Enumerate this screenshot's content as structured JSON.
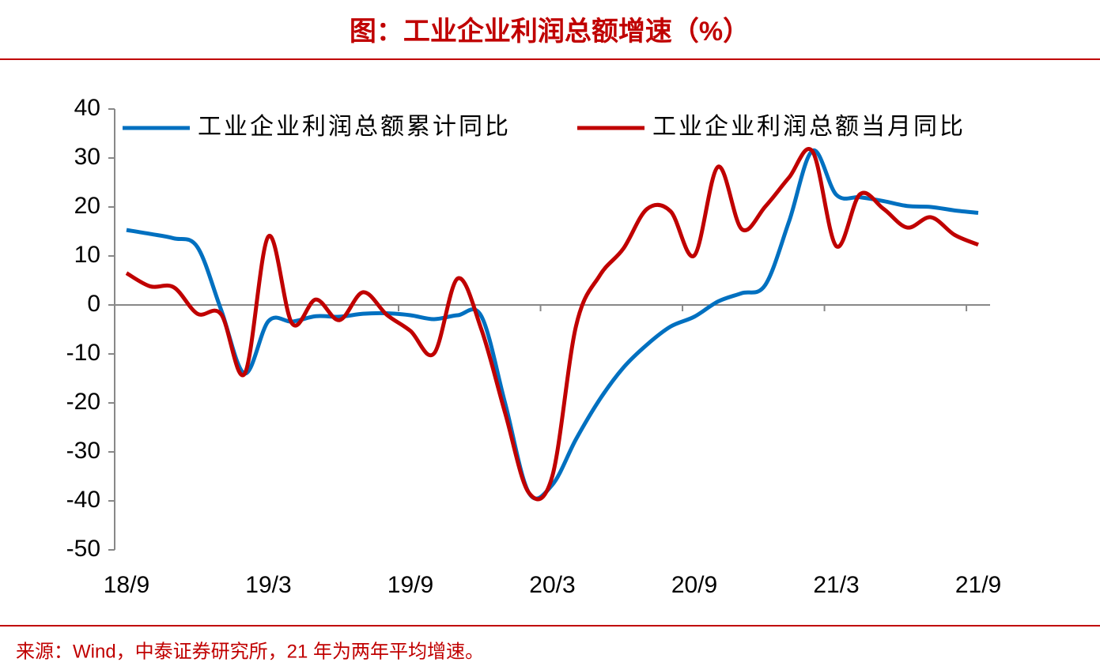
{
  "chart_data": {
    "type": "line",
    "title": "图：工业企业利润总额增速（%）",
    "source": "来源：Wind，中泰证券研究所，21 年为两年平均增速。",
    "categories": [
      "18/9",
      null,
      null,
      null,
      null,
      null,
      "19/3",
      null,
      null,
      null,
      null,
      null,
      "19/9",
      null,
      null,
      null,
      null,
      null,
      "20/3",
      null,
      null,
      null,
      null,
      null,
      "20/9",
      null,
      null,
      null,
      null,
      null,
      "21/3",
      null,
      null,
      null,
      null,
      null,
      "21/9"
    ],
    "series": [
      {
        "name": "工业企业利润总额累计同比",
        "color": "#0070c0",
        "values": [
          15.3,
          14.5,
          13.6,
          11.8,
          -1,
          -14.0,
          -3.3,
          -3.4,
          -2.3,
          -2.4,
          -1.8,
          -1.7,
          -2.1,
          -2.9,
          -2.1,
          -2.3,
          -20,
          -38.3,
          -36.7,
          -27.4,
          -19.3,
          -12.8,
          -8.1,
          -4.4,
          -2.4,
          0.7,
          2.4,
          4.1,
          17,
          31.5,
          22.5,
          22.0,
          21.2,
          20.2,
          20.0,
          19.3,
          18.8
        ]
      },
      {
        "name": "工业企业利润总额当月同比",
        "color": "#c00000",
        "values": [
          6.5,
          3.8,
          3.6,
          -1.8,
          -1.9,
          -14.0,
          14.0,
          -3.8,
          1.1,
          -3.1,
          2.6,
          -2.0,
          -5.3,
          -9.9,
          5.4,
          -5.0,
          -22,
          -38.3,
          -34.9,
          -4.3,
          6.0,
          11.5,
          19.6,
          19.1,
          10.1,
          28.2,
          15.5,
          20.1,
          26.0,
          31.3,
          12.0,
          22.6,
          19.6,
          15.8,
          17.9,
          14.3,
          12.3
        ]
      }
    ],
    "ylim": [
      -50,
      40
    ],
    "yticks": [
      -50,
      -40,
      -30,
      -20,
      -10,
      0,
      10,
      20,
      30,
      40
    ]
  }
}
